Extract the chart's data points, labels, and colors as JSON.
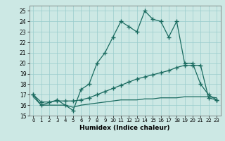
{
  "xlabel": "Humidex (Indice chaleur)",
  "bg_color": "#cce8e4",
  "grid_color": "#99cccc",
  "line_color": "#1a6b60",
  "xlim": [
    -0.5,
    23.5
  ],
  "ylim": [
    15,
    25.5
  ],
  "yticks": [
    15,
    16,
    17,
    18,
    19,
    20,
    21,
    22,
    23,
    24,
    25
  ],
  "xticks": [
    0,
    1,
    2,
    3,
    4,
    5,
    6,
    7,
    8,
    9,
    10,
    11,
    12,
    13,
    14,
    15,
    16,
    17,
    18,
    19,
    20,
    21,
    22,
    23
  ],
  "line1_x": [
    0,
    1,
    3,
    4,
    5,
    6,
    7,
    8,
    9,
    10,
    11,
    12,
    13,
    14,
    15,
    16,
    17,
    18,
    19,
    20,
    21,
    22,
    23
  ],
  "line1_y": [
    17,
    16,
    16.5,
    16,
    15.5,
    17.5,
    18,
    20,
    21,
    22.5,
    24,
    23.5,
    23,
    25,
    24.2,
    24,
    22.5,
    24,
    20,
    20,
    18,
    17,
    16.5
  ],
  "line2_x": [
    0,
    1,
    2,
    3,
    4,
    5,
    6,
    7,
    8,
    9,
    10,
    11,
    12,
    13,
    14,
    15,
    16,
    17,
    18,
    19,
    20,
    21,
    22,
    23
  ],
  "line2_y": [
    17,
    16.3,
    16.3,
    16.4,
    16.4,
    16.4,
    16.5,
    16.7,
    17.0,
    17.3,
    17.6,
    17.9,
    18.2,
    18.5,
    18.7,
    18.9,
    19.1,
    19.3,
    19.6,
    19.8,
    19.8,
    19.8,
    16.7,
    16.5
  ],
  "line3_x": [
    0,
    1,
    2,
    3,
    4,
    5,
    6,
    7,
    8,
    9,
    10,
    11,
    12,
    13,
    14,
    15,
    16,
    17,
    18,
    19,
    20,
    21,
    22,
    23
  ],
  "line3_y": [
    16.8,
    16.0,
    16.0,
    16.0,
    16.0,
    15.8,
    16.0,
    16.1,
    16.2,
    16.3,
    16.4,
    16.5,
    16.5,
    16.5,
    16.6,
    16.6,
    16.7,
    16.7,
    16.7,
    16.8,
    16.8,
    16.8,
    16.8,
    16.7
  ]
}
